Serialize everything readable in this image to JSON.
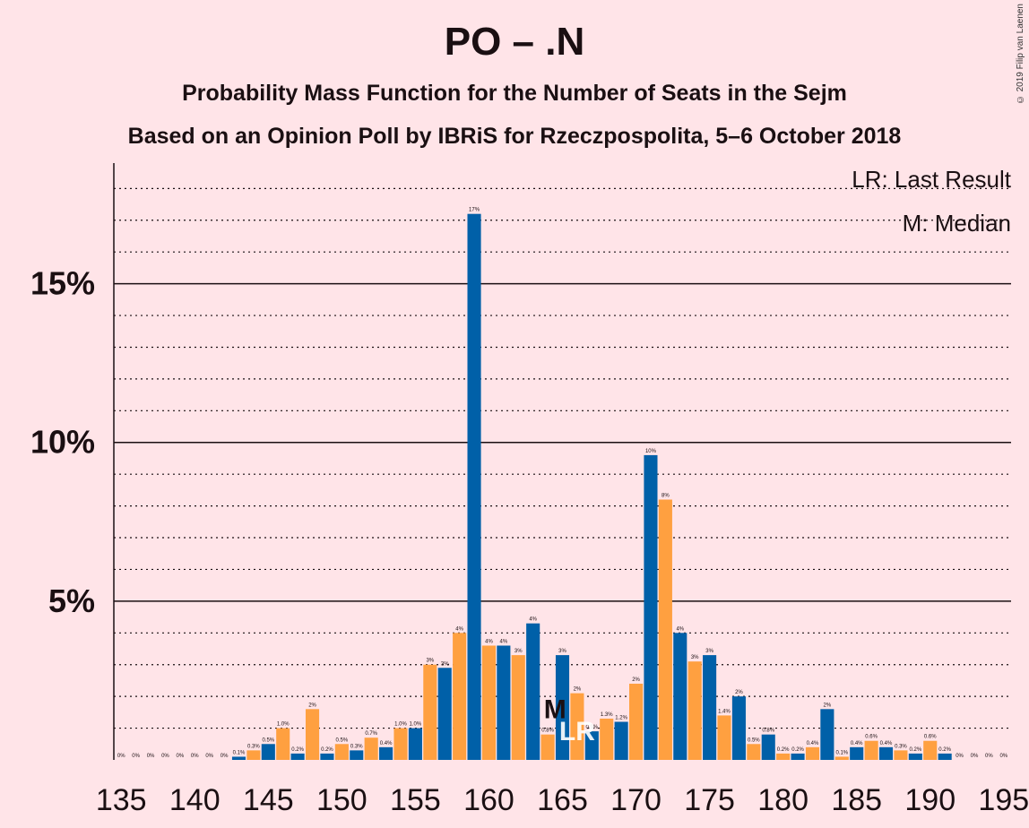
{
  "title": "PO – .N",
  "subtitle": "Probability Mass Function for the Number of Seats in the Sejm",
  "source_line": "Based on an Opinion Poll by IBRiS for Rzeczpospolita, 5–6 October 2018",
  "copyright": "© 2019 Filip van Laenen",
  "legend": {
    "last_result": "LR: Last Result",
    "median": "M: Median"
  },
  "markers": {
    "median_label": "M",
    "median_seat": 164,
    "last_result_label": "LR",
    "last_result_seat": 166
  },
  "colors": {
    "blue": "#0060a8",
    "orange": "#ffa040",
    "background": "#ffe4e8"
  },
  "chart_data": {
    "type": "bar",
    "title": "PO – .N",
    "xlabel": "",
    "ylabel": "",
    "ylim": [
      0,
      18.8
    ],
    "xlim": [
      134.5,
      195.5
    ],
    "grid": "dotted every 1%, solid every 5%",
    "y_ticks": [
      {
        "value": 5,
        "label": "5%"
      },
      {
        "value": 10,
        "label": "10%"
      },
      {
        "value": 15,
        "label": "15%"
      }
    ],
    "x_ticks": [
      {
        "value": 135,
        "label": "135"
      },
      {
        "value": 140,
        "label": "140"
      },
      {
        "value": 145,
        "label": "145"
      },
      {
        "value": 150,
        "label": "150"
      },
      {
        "value": 155,
        "label": "155"
      },
      {
        "value": 160,
        "label": "160"
      },
      {
        "value": 165,
        "label": "165"
      },
      {
        "value": 170,
        "label": "170"
      },
      {
        "value": 175,
        "label": "175"
      },
      {
        "value": 180,
        "label": "180"
      },
      {
        "value": 185,
        "label": "185"
      },
      {
        "value": 190,
        "label": "190"
      },
      {
        "value": 195,
        "label": "195"
      }
    ],
    "bars": [
      {
        "seat": 135,
        "value": 0.0,
        "label": "0%"
      },
      {
        "seat": 136,
        "value": 0.0,
        "label": "0%"
      },
      {
        "seat": 137,
        "value": 0.0,
        "label": "0%"
      },
      {
        "seat": 138,
        "value": 0.0,
        "label": "0%"
      },
      {
        "seat": 139,
        "value": 0.0,
        "label": "0%"
      },
      {
        "seat": 140,
        "value": 0.0,
        "label": "0%"
      },
      {
        "seat": 141,
        "value": 0.0,
        "label": "0%"
      },
      {
        "seat": 142,
        "value": 0.0,
        "label": "0%"
      },
      {
        "seat": 143,
        "value": 0.1,
        "label": "0.1%"
      },
      {
        "seat": 144,
        "value": 0.3,
        "label": "0.3%"
      },
      {
        "seat": 145,
        "value": 0.5,
        "label": "0.5%"
      },
      {
        "seat": 146,
        "value": 1.0,
        "label": "1.0%"
      },
      {
        "seat": 147,
        "value": 0.2,
        "label": "0.2%"
      },
      {
        "seat": 148,
        "value": 1.6,
        "label": "2%"
      },
      {
        "seat": 149,
        "value": 0.2,
        "label": "0.2%"
      },
      {
        "seat": 150,
        "value": 0.5,
        "label": "0.5%"
      },
      {
        "seat": 151,
        "value": 0.3,
        "label": "0.3%"
      },
      {
        "seat": 152,
        "value": 0.7,
        "label": "0.7%"
      },
      {
        "seat": 153,
        "value": 0.4,
        "label": "0.4%"
      },
      {
        "seat": 154,
        "value": 1.0,
        "label": "1.0%"
      },
      {
        "seat": 155,
        "value": 1.0,
        "label": "1.0%"
      },
      {
        "seat": 156,
        "value": 3.0,
        "label": "3%"
      },
      {
        "seat": 157,
        "value": 2.9,
        "label": "3%"
      },
      {
        "seat": 158,
        "value": 4.0,
        "label": "4%"
      },
      {
        "seat": 159,
        "value": 17.2,
        "label": "17%"
      },
      {
        "seat": 160,
        "value": 3.6,
        "label": "4%"
      },
      {
        "seat": 161,
        "value": 3.6,
        "label": "4%"
      },
      {
        "seat": 162,
        "value": 3.3,
        "label": "3%"
      },
      {
        "seat": 163,
        "value": 4.3,
        "label": "4%"
      },
      {
        "seat": 164,
        "value": 0.8,
        "label": "0.8%"
      },
      {
        "seat": 165,
        "value": 3.3,
        "label": "3%"
      },
      {
        "seat": 166,
        "value": 2.1,
        "label": "2%"
      },
      {
        "seat": 167,
        "value": 0.9,
        "label": "0.9%"
      },
      {
        "seat": 168,
        "value": 1.3,
        "label": "1.3%"
      },
      {
        "seat": 169,
        "value": 1.2,
        "label": "1.2%"
      },
      {
        "seat": 170,
        "value": 2.4,
        "label": "2%"
      },
      {
        "seat": 171,
        "value": 9.6,
        "label": "10%"
      },
      {
        "seat": 172,
        "value": 8.2,
        "label": "8%"
      },
      {
        "seat": 173,
        "value": 4.0,
        "label": "4%"
      },
      {
        "seat": 174,
        "value": 3.1,
        "label": "3%"
      },
      {
        "seat": 175,
        "value": 3.3,
        "label": "3%"
      },
      {
        "seat": 176,
        "value": 1.4,
        "label": "1.4%"
      },
      {
        "seat": 177,
        "value": 2.0,
        "label": "2%"
      },
      {
        "seat": 178,
        "value": 0.5,
        "label": "0.5%"
      },
      {
        "seat": 179,
        "value": 0.8,
        "label": "0.8%"
      },
      {
        "seat": 180,
        "value": 0.2,
        "label": "0.2%"
      },
      {
        "seat": 181,
        "value": 0.2,
        "label": "0.2%"
      },
      {
        "seat": 182,
        "value": 0.4,
        "label": "0.4%"
      },
      {
        "seat": 183,
        "value": 1.6,
        "label": "2%"
      },
      {
        "seat": 184,
        "value": 0.1,
        "label": "0.1%"
      },
      {
        "seat": 185,
        "value": 0.4,
        "label": "0.4%"
      },
      {
        "seat": 186,
        "value": 0.6,
        "label": "0.6%"
      },
      {
        "seat": 187,
        "value": 0.4,
        "label": "0.4%"
      },
      {
        "seat": 188,
        "value": 0.3,
        "label": "0.3%"
      },
      {
        "seat": 189,
        "value": 0.2,
        "label": "0.2%"
      },
      {
        "seat": 190,
        "value": 0.6,
        "label": "0.6%"
      },
      {
        "seat": 191,
        "value": 0.2,
        "label": "0.2%"
      },
      {
        "seat": 192,
        "value": 0.0,
        "label": "0%"
      },
      {
        "seat": 193,
        "value": 0.0,
        "label": "0%"
      },
      {
        "seat": 194,
        "value": 0.0,
        "label": "0%"
      },
      {
        "seat": 195,
        "value": 0.0,
        "label": "0%"
      }
    ]
  }
}
